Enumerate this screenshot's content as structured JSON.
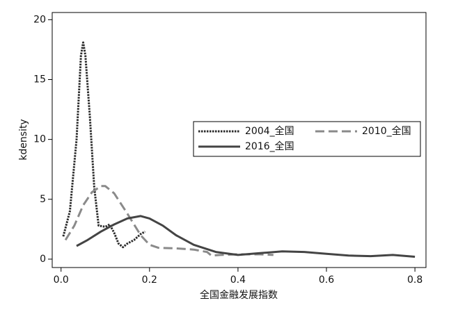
{
  "chart_data": {
    "type": "line",
    "xlabel": "全国金融发展指数",
    "ylabel": "kdensity",
    "xlim": [
      -0.02,
      0.825
    ],
    "ylim": [
      -0.7,
      20.6
    ],
    "xticks": [
      {
        "value": 0,
        "label": "0.0"
      },
      0.2,
      0.4,
      0.6,
      0.8
    ],
    "yticks": [
      0,
      5,
      10,
      15,
      20
    ],
    "series": [
      {
        "name": "2004_全国",
        "color": "#2b2b2b",
        "line_style": "dotted",
        "x": [
          0.005,
          0.02,
          0.035,
          0.045,
          0.05,
          0.055,
          0.065,
          0.075,
          0.085,
          0.1,
          0.11,
          0.12,
          0.13,
          0.14,
          0.15,
          0.165,
          0.18,
          0.19
        ],
        "values": [
          1.9,
          4,
          10,
          17,
          18.1,
          17,
          12,
          6,
          2.8,
          2.7,
          2.9,
          2.2,
          1.3,
          1.0,
          1.3,
          1.6,
          2.1,
          2.3
        ]
      },
      {
        "name": "2010_全国",
        "color": "#8a8a8a",
        "line_style": "dashed",
        "x": [
          0.01,
          0.03,
          0.05,
          0.07,
          0.09,
          0.1,
          0.12,
          0.15,
          0.18,
          0.2,
          0.22,
          0.26,
          0.3,
          0.33,
          0.34,
          0.36,
          0.4,
          0.45,
          0.48
        ],
        "values": [
          1.6,
          2.8,
          4.5,
          5.6,
          6.1,
          6.1,
          5.5,
          3.8,
          2.0,
          1.2,
          0.95,
          0.9,
          0.8,
          0.6,
          0.3,
          0.35,
          0.4,
          0.4,
          0.35
        ]
      },
      {
        "name": "2016_全国",
        "color": "#444444",
        "line_style": "solid",
        "x": [
          0.035,
          0.06,
          0.09,
          0.12,
          0.15,
          0.18,
          0.2,
          0.23,
          0.26,
          0.3,
          0.35,
          0.4,
          0.45,
          0.5,
          0.55,
          0.6,
          0.65,
          0.7,
          0.75,
          0.8
        ],
        "values": [
          1.1,
          1.6,
          2.3,
          2.9,
          3.4,
          3.6,
          3.4,
          2.8,
          2.0,
          1.2,
          0.6,
          0.35,
          0.5,
          0.65,
          0.6,
          0.45,
          0.3,
          0.25,
          0.35,
          0.2
        ]
      }
    ]
  }
}
